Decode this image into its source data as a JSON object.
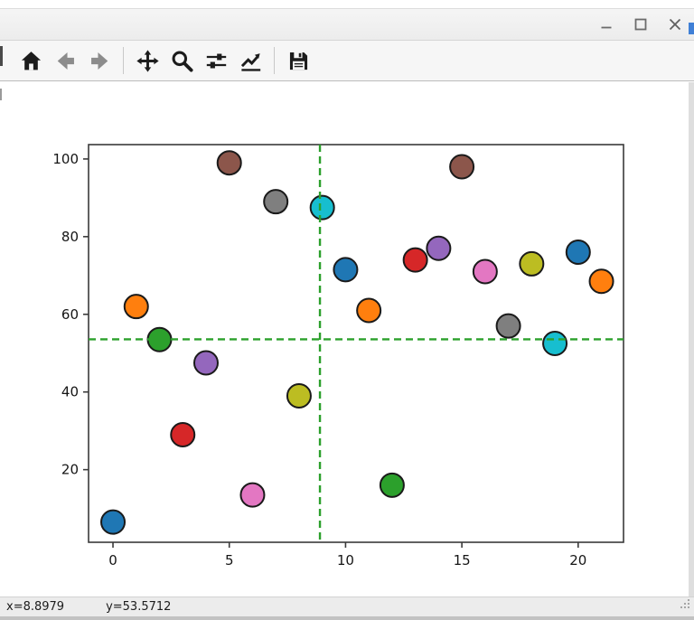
{
  "window": {
    "title": "",
    "controls": [
      {
        "id": "minimize",
        "icon": "minimize-icon"
      },
      {
        "id": "maximize",
        "icon": "maximize-icon"
      },
      {
        "id": "close",
        "icon": "close-icon"
      }
    ]
  },
  "toolbar": {
    "buttons": [
      {
        "id": "home",
        "icon": "home-icon",
        "tooltip": "Home"
      },
      {
        "id": "back",
        "icon": "back-arrow-icon",
        "tooltip": "Back"
      },
      {
        "id": "forward",
        "icon": "forward-arrow-icon",
        "tooltip": "Forward"
      },
      {
        "id": "pan",
        "icon": "pan-arrows-icon",
        "tooltip": "Pan"
      },
      {
        "id": "zoom",
        "icon": "zoom-magnifier-icon",
        "tooltip": "Zoom"
      },
      {
        "id": "subplots",
        "icon": "sliders-icon",
        "tooltip": "Configure subplots"
      },
      {
        "id": "customize",
        "icon": "line-chart-icon",
        "tooltip": "Edit axis and curve parameters"
      },
      {
        "id": "save",
        "icon": "floppy-disk-icon",
        "tooltip": "Save the figure"
      }
    ]
  },
  "statusbar": {
    "x_readout": "x=8.8979",
    "y_readout": "y=53.5712"
  },
  "chart_data": {
    "type": "scatter",
    "title": "",
    "xlabel": "",
    "ylabel": "",
    "grid": false,
    "xlim": [
      -1.05,
      21.95
    ],
    "ylim": [
      1.3,
      103.7
    ],
    "xticks": [
      0,
      5,
      10,
      15,
      20
    ],
    "yticks": [
      20,
      40,
      60,
      80,
      100
    ],
    "marker_edge_color": "#1a1a1a",
    "marker_radius_px": 13,
    "crosshair": {
      "x": 8.8979,
      "y": 53.5712,
      "color": "#2ca02c",
      "line_style": "dashed"
    },
    "points": [
      {
        "x": 0,
        "y": 6.5,
        "color": "#1f77b4"
      },
      {
        "x": 1,
        "y": 62,
        "color": "#ff7f0e"
      },
      {
        "x": 2,
        "y": 53.5,
        "color": "#2ca02c"
      },
      {
        "x": 3,
        "y": 29,
        "color": "#d62728"
      },
      {
        "x": 4,
        "y": 47.5,
        "color": "#9467bd"
      },
      {
        "x": 5,
        "y": 99,
        "color": "#8c564b"
      },
      {
        "x": 6,
        "y": 13.5,
        "color": "#e377c2"
      },
      {
        "x": 7,
        "y": 89,
        "color": "#7f7f7f"
      },
      {
        "x": 8,
        "y": 39,
        "color": "#bcbd22"
      },
      {
        "x": 9,
        "y": 87.5,
        "color": "#17becf"
      },
      {
        "x": 10,
        "y": 71.5,
        "color": "#1f77b4"
      },
      {
        "x": 11,
        "y": 61,
        "color": "#ff7f0e"
      },
      {
        "x": 12,
        "y": 16,
        "color": "#2ca02c"
      },
      {
        "x": 13,
        "y": 74,
        "color": "#d62728"
      },
      {
        "x": 14,
        "y": 77,
        "color": "#9467bd"
      },
      {
        "x": 15,
        "y": 98,
        "color": "#8c564b"
      },
      {
        "x": 16,
        "y": 71,
        "color": "#e377c2"
      },
      {
        "x": 17,
        "y": 57,
        "color": "#7f7f7f"
      },
      {
        "x": 18,
        "y": 73,
        "color": "#bcbd22"
      },
      {
        "x": 19,
        "y": 52.5,
        "color": "#17becf"
      },
      {
        "x": 20,
        "y": 76,
        "color": "#1f77b4"
      },
      {
        "x": 21,
        "y": 68.5,
        "color": "#ff7f0e"
      }
    ]
  }
}
